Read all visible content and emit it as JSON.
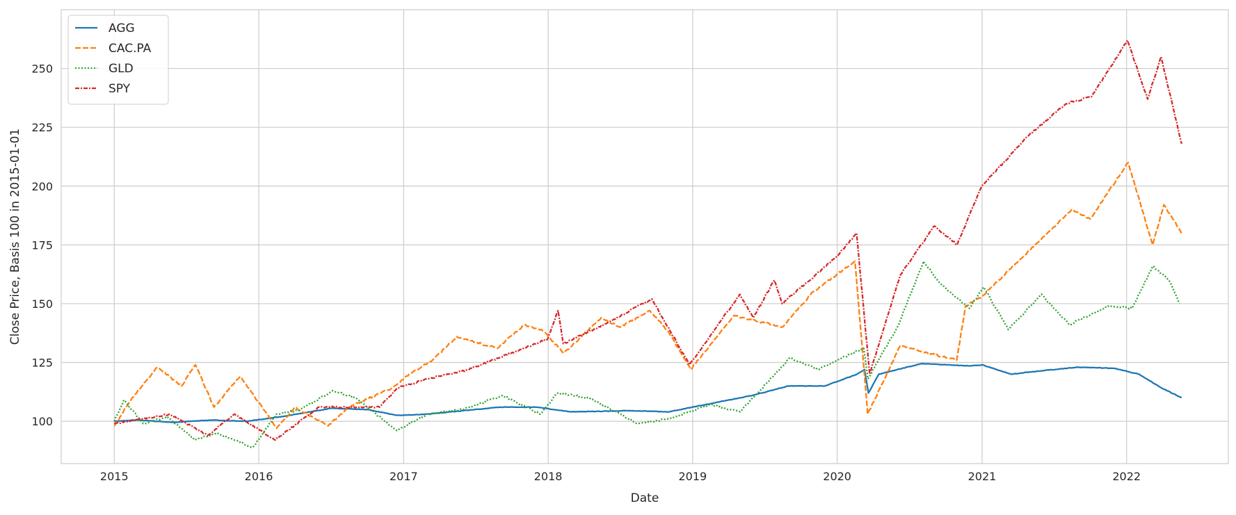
{
  "chart_data": {
    "type": "line",
    "xlabel": "Date",
    "ylabel": "Close Price, Basis 100 in 2015-01-01",
    "xlim": [
      "2014-08-20",
      "2022-09-15"
    ],
    "ylim": [
      82,
      275
    ],
    "x_ticks": [
      "2015",
      "2016",
      "2017",
      "2018",
      "2019",
      "2020",
      "2021",
      "2022"
    ],
    "y_ticks": [
      100,
      125,
      150,
      175,
      200,
      225,
      250
    ],
    "grid": true,
    "legend_position": "top-left",
    "series": [
      {
        "name": "AGG",
        "color": "#1f77b4",
        "dash": "solid",
        "points": [
          [
            "2015-01-01",
            100
          ],
          [
            "2015-03-01",
            100.5
          ],
          [
            "2015-06-01",
            99.5
          ],
          [
            "2015-09-01",
            100.5
          ],
          [
            "2015-12-01",
            100
          ],
          [
            "2016-03-01",
            102
          ],
          [
            "2016-07-01",
            105.5
          ],
          [
            "2016-10-01",
            105
          ],
          [
            "2016-12-15",
            102.5
          ],
          [
            "2017-03-01",
            103
          ],
          [
            "2017-09-01",
            106
          ],
          [
            "2017-12-01",
            106
          ],
          [
            "2018-03-01",
            104
          ],
          [
            "2018-08-01",
            104.5
          ],
          [
            "2018-11-01",
            104
          ],
          [
            "2019-01-01",
            106
          ],
          [
            "2019-06-01",
            111
          ],
          [
            "2019-09-01",
            115
          ],
          [
            "2019-12-01",
            115
          ],
          [
            "2020-02-20",
            120
          ],
          [
            "2020-03-10",
            122
          ],
          [
            "2020-03-20",
            112
          ],
          [
            "2020-04-15",
            120
          ],
          [
            "2020-08-01",
            124.5
          ],
          [
            "2020-12-01",
            123.5
          ],
          [
            "2021-01-01",
            124
          ],
          [
            "2021-03-15",
            120
          ],
          [
            "2021-06-01",
            121.5
          ],
          [
            "2021-09-01",
            123
          ],
          [
            "2021-12-01",
            122.5
          ],
          [
            "2022-02-01",
            120
          ],
          [
            "2022-04-01",
            114
          ],
          [
            "2022-05-20",
            110
          ]
        ]
      },
      {
        "name": "CAC.PA",
        "color": "#ff7f0e",
        "dash": "dashed",
        "points": [
          [
            "2015-01-01",
            98
          ],
          [
            "2015-02-15",
            110
          ],
          [
            "2015-04-20",
            123
          ],
          [
            "2015-06-20",
            115
          ],
          [
            "2015-07-25",
            124
          ],
          [
            "2015-09-10",
            106
          ],
          [
            "2015-11-15",
            119
          ],
          [
            "2016-01-01",
            108
          ],
          [
            "2016-02-15",
            97
          ],
          [
            "2016-04-01",
            106
          ],
          [
            "2016-06-24",
            98
          ],
          [
            "2016-08-15",
            106
          ],
          [
            "2016-12-01",
            114
          ],
          [
            "2017-01-15",
            120
          ],
          [
            "2017-03-15",
            126
          ],
          [
            "2017-05-15",
            136
          ],
          [
            "2017-08-25",
            131
          ],
          [
            "2017-11-01",
            141
          ],
          [
            "2017-12-15",
            139
          ],
          [
            "2018-02-10",
            129
          ],
          [
            "2018-05-15",
            144
          ],
          [
            "2018-07-01",
            140
          ],
          [
            "2018-09-15",
            147
          ],
          [
            "2018-11-01",
            138
          ],
          [
            "2018-12-27",
            122
          ],
          [
            "2019-04-15",
            145
          ],
          [
            "2019-08-15",
            140
          ],
          [
            "2019-11-01",
            155
          ],
          [
            "2020-02-15",
            168
          ],
          [
            "2020-03-18",
            103
          ],
          [
            "2020-06-08",
            132
          ],
          [
            "2020-10-29",
            126
          ],
          [
            "2020-11-20",
            149
          ],
          [
            "2020-12-31",
            153
          ],
          [
            "2021-04-15",
            170
          ],
          [
            "2021-08-15",
            190
          ],
          [
            "2021-10-01",
            186
          ],
          [
            "2022-01-05",
            210
          ],
          [
            "2022-03-08",
            175
          ],
          [
            "2022-04-05",
            192
          ],
          [
            "2022-05-20",
            180
          ]
        ]
      },
      {
        "name": "GLD",
        "color": "#2ca02c",
        "dash": "dotted",
        "points": [
          [
            "2015-01-01",
            100
          ],
          [
            "2015-01-25",
            109
          ],
          [
            "2015-03-15",
            99
          ],
          [
            "2015-05-15",
            102
          ],
          [
            "2015-07-24",
            92
          ],
          [
            "2015-09-15",
            95
          ],
          [
            "2015-12-17",
            89
          ],
          [
            "2016-02-15",
            103
          ],
          [
            "2016-04-15",
            105
          ],
          [
            "2016-07-06",
            113
          ],
          [
            "2016-09-01",
            110
          ],
          [
            "2016-12-15",
            96
          ],
          [
            "2017-03-01",
            103
          ],
          [
            "2017-06-01",
            105
          ],
          [
            "2017-09-08",
            111
          ],
          [
            "2017-12-12",
            103
          ],
          [
            "2018-01-25",
            112
          ],
          [
            "2018-04-15",
            110
          ],
          [
            "2018-08-16",
            99
          ],
          [
            "2018-11-01",
            101
          ],
          [
            "2019-02-15",
            107
          ],
          [
            "2019-05-01",
            104
          ],
          [
            "2019-09-04",
            127
          ],
          [
            "2019-11-15",
            122
          ],
          [
            "2020-01-01",
            126
          ],
          [
            "2020-03-08",
            131
          ],
          [
            "2020-03-19",
            118
          ],
          [
            "2020-06-01",
            140
          ],
          [
            "2020-08-06",
            168
          ],
          [
            "2020-09-15",
            159
          ],
          [
            "2020-11-30",
            148
          ],
          [
            "2021-01-05",
            157
          ],
          [
            "2021-03-08",
            139
          ],
          [
            "2021-05-31",
            154
          ],
          [
            "2021-08-09",
            141
          ],
          [
            "2021-11-15",
            149
          ],
          [
            "2022-01-15",
            148
          ],
          [
            "2022-03-08",
            166
          ],
          [
            "2022-04-18",
            160
          ],
          [
            "2022-05-15",
            150
          ]
        ]
      },
      {
        "name": "SPY",
        "color": "#d62728",
        "dash": "dashdot",
        "points": [
          [
            "2015-01-01",
            99
          ],
          [
            "2015-05-20",
            103
          ],
          [
            "2015-08-25",
            94
          ],
          [
            "2015-11-01",
            103
          ],
          [
            "2016-02-11",
            92
          ],
          [
            "2016-06-01",
            106
          ],
          [
            "2016-11-01",
            106
          ],
          [
            "2016-12-15",
            114
          ],
          [
            "2017-03-01",
            118
          ],
          [
            "2017-06-15",
            122
          ],
          [
            "2017-12-31",
            135
          ],
          [
            "2018-01-26",
            147
          ],
          [
            "2018-02-08",
            133
          ],
          [
            "2018-06-01",
            142
          ],
          [
            "2018-09-20",
            152
          ],
          [
            "2018-12-24",
            124
          ],
          [
            "2019-04-30",
            154
          ],
          [
            "2019-06-03",
            144
          ],
          [
            "2019-07-26",
            160
          ],
          [
            "2019-08-15",
            150
          ],
          [
            "2019-12-31",
            170
          ],
          [
            "2020-02-19",
            180
          ],
          [
            "2020-03-23",
            120
          ],
          [
            "2020-06-08",
            162
          ],
          [
            "2020-09-02",
            183
          ],
          [
            "2020-10-30",
            175
          ],
          [
            "2020-12-31",
            200
          ],
          [
            "2021-05-01",
            222
          ],
          [
            "2021-08-01",
            235
          ],
          [
            "2021-10-04",
            238
          ],
          [
            "2022-01-03",
            262
          ],
          [
            "2022-02-23",
            237
          ],
          [
            "2022-03-29",
            255
          ],
          [
            "2022-05-20",
            218
          ]
        ]
      }
    ]
  }
}
